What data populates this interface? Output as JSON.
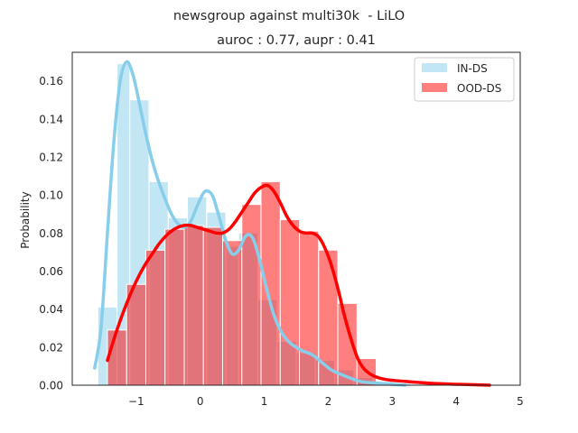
{
  "chart_data": {
    "type": "histogram",
    "suptitle": "newsgroup against multi30k  - LiLO",
    "title": "auroc : 0.77, aupr : 0.41",
    "xlabel": "",
    "ylabel": "Probability",
    "xlim": [
      -2.0,
      5.0
    ],
    "ylim": [
      0.0,
      0.175
    ],
    "xticks": [
      -1,
      0,
      1,
      2,
      3,
      4,
      5
    ],
    "xtick_labels": [
      "−1",
      "0",
      "1",
      "2",
      "3",
      "4",
      "5"
    ],
    "yticks": [
      0.0,
      0.02,
      0.04,
      0.06,
      0.08,
      0.1,
      0.12,
      0.14,
      0.16
    ],
    "ytick_labels": [
      "0.00",
      "0.02",
      "0.04",
      "0.06",
      "0.08",
      "0.10",
      "0.12",
      "0.14",
      "0.16"
    ],
    "grid": false,
    "legend_position": "top-right",
    "series": [
      {
        "name": "IN-DS",
        "color": "#87ceeb",
        "bar_opacity": 0.5,
        "bins": [
          {
            "x0": -1.6,
            "x1": -1.3,
            "value": 0.041
          },
          {
            "x0": -1.3,
            "x1": -1.1,
            "value": 0.169
          },
          {
            "x0": -1.1,
            "x1": -0.8,
            "value": 0.15
          },
          {
            "x0": -0.8,
            "x1": -0.5,
            "value": 0.107
          },
          {
            "x0": -0.5,
            "x1": -0.2,
            "value": 0.088
          },
          {
            "x0": -0.2,
            "x1": 0.1,
            "value": 0.099
          },
          {
            "x0": 0.1,
            "x1": 0.4,
            "value": 0.091
          },
          {
            "x0": 0.4,
            "x1": 0.6,
            "value": 0.073
          },
          {
            "x0": 0.6,
            "x1": 0.9,
            "value": 0.08
          },
          {
            "x0": 0.9,
            "x1": 1.2,
            "value": 0.045
          },
          {
            "x0": 1.2,
            "x1": 1.5,
            "value": 0.023
          },
          {
            "x0": 1.5,
            "x1": 1.8,
            "value": 0.017
          },
          {
            "x0": 1.8,
            "x1": 2.1,
            "value": 0.013
          },
          {
            "x0": 2.1,
            "x1": 2.4,
            "value": 0.008
          },
          {
            "x0": 2.4,
            "x1": 2.7,
            "value": 0.004
          },
          {
            "x0": 2.7,
            "x1": 3.0,
            "value": 0.002
          },
          {
            "x0": 3.0,
            "x1": 3.3,
            "value": 0.001
          }
        ],
        "kde": [
          [
            -1.65,
            0.009
          ],
          [
            -1.55,
            0.03
          ],
          [
            -1.45,
            0.08
          ],
          [
            -1.35,
            0.128
          ],
          [
            -1.25,
            0.16
          ],
          [
            -1.15,
            0.17
          ],
          [
            -1.05,
            0.163
          ],
          [
            -0.95,
            0.148
          ],
          [
            -0.85,
            0.132
          ],
          [
            -0.75,
            0.118
          ],
          [
            -0.65,
            0.107
          ],
          [
            -0.55,
            0.098
          ],
          [
            -0.45,
            0.09
          ],
          [
            -0.35,
            0.085
          ],
          [
            -0.25,
            0.083
          ],
          [
            -0.15,
            0.086
          ],
          [
            -0.05,
            0.094
          ],
          [
            0.05,
            0.101
          ],
          [
            0.12,
            0.102
          ],
          [
            0.2,
            0.099
          ],
          [
            0.3,
            0.088
          ],
          [
            0.4,
            0.076
          ],
          [
            0.5,
            0.069
          ],
          [
            0.6,
            0.071
          ],
          [
            0.7,
            0.078
          ],
          [
            0.78,
            0.079
          ],
          [
            0.85,
            0.075
          ],
          [
            0.95,
            0.063
          ],
          [
            1.05,
            0.049
          ],
          [
            1.15,
            0.037
          ],
          [
            1.25,
            0.029
          ],
          [
            1.35,
            0.024
          ],
          [
            1.45,
            0.021
          ],
          [
            1.6,
            0.018
          ],
          [
            1.75,
            0.016
          ],
          [
            1.9,
            0.012
          ],
          [
            2.05,
            0.008
          ],
          [
            2.25,
            0.005
          ],
          [
            2.5,
            0.002
          ],
          [
            2.8,
            0.001
          ],
          [
            3.2,
            0.0
          ]
        ]
      },
      {
        "name": "OOD-DS",
        "color": "#ff0000",
        "bar_opacity": 0.5,
        "bins": [
          {
            "x0": -1.45,
            "x1": -1.15,
            "value": 0.029
          },
          {
            "x0": -1.15,
            "x1": -0.85,
            "value": 0.053
          },
          {
            "x0": -0.85,
            "x1": -0.55,
            "value": 0.071
          },
          {
            "x0": -0.55,
            "x1": -0.25,
            "value": 0.082
          },
          {
            "x0": -0.25,
            "x1": 0.05,
            "value": 0.084
          },
          {
            "x0": 0.05,
            "x1": 0.35,
            "value": 0.083
          },
          {
            "x0": 0.35,
            "x1": 0.65,
            "value": 0.076
          },
          {
            "x0": 0.65,
            "x1": 0.95,
            "value": 0.095
          },
          {
            "x0": 0.95,
            "x1": 1.25,
            "value": 0.107
          },
          {
            "x0": 1.25,
            "x1": 1.55,
            "value": 0.087
          },
          {
            "x0": 1.55,
            "x1": 1.85,
            "value": 0.081
          },
          {
            "x0": 1.85,
            "x1": 2.15,
            "value": 0.071
          },
          {
            "x0": 2.15,
            "x1": 2.45,
            "value": 0.043
          },
          {
            "x0": 2.45,
            "x1": 2.75,
            "value": 0.014
          }
        ],
        "kde": [
          [
            -1.45,
            0.013
          ],
          [
            -1.35,
            0.024
          ],
          [
            -1.25,
            0.034
          ],
          [
            -1.15,
            0.043
          ],
          [
            -1.05,
            0.051
          ],
          [
            -0.95,
            0.058
          ],
          [
            -0.85,
            0.064
          ],
          [
            -0.75,
            0.069
          ],
          [
            -0.65,
            0.074
          ],
          [
            -0.55,
            0.078
          ],
          [
            -0.45,
            0.081
          ],
          [
            -0.35,
            0.083
          ],
          [
            -0.25,
            0.084
          ],
          [
            -0.15,
            0.084
          ],
          [
            -0.05,
            0.083
          ],
          [
            0.05,
            0.082
          ],
          [
            0.15,
            0.081
          ],
          [
            0.25,
            0.08
          ],
          [
            0.35,
            0.08
          ],
          [
            0.45,
            0.082
          ],
          [
            0.55,
            0.086
          ],
          [
            0.65,
            0.091
          ],
          [
            0.75,
            0.096
          ],
          [
            0.85,
            0.101
          ],
          [
            0.95,
            0.104
          ],
          [
            1.05,
            0.105
          ],
          [
            1.15,
            0.102
          ],
          [
            1.25,
            0.096
          ],
          [
            1.35,
            0.089
          ],
          [
            1.45,
            0.084
          ],
          [
            1.55,
            0.081
          ],
          [
            1.65,
            0.08
          ],
          [
            1.75,
            0.08
          ],
          [
            1.85,
            0.078
          ],
          [
            1.95,
            0.072
          ],
          [
            2.05,
            0.063
          ],
          [
            2.15,
            0.051
          ],
          [
            2.25,
            0.037
          ],
          [
            2.35,
            0.025
          ],
          [
            2.45,
            0.015
          ],
          [
            2.55,
            0.009
          ],
          [
            2.7,
            0.005
          ],
          [
            2.9,
            0.003
          ],
          [
            3.2,
            0.002
          ],
          [
            3.6,
            0.001
          ],
          [
            4.0,
            0.0005
          ],
          [
            4.52,
            0.0
          ]
        ]
      }
    ]
  }
}
